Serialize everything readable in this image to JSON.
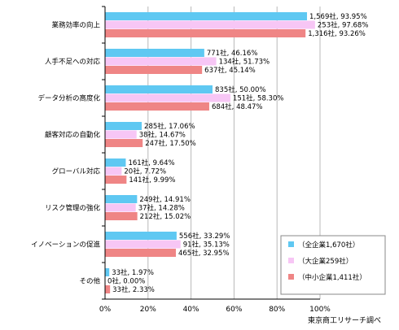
{
  "chart_data": {
    "type": "bar",
    "orientation": "horizontal",
    "categories": [
      "業務効率の向上",
      "人手不足への対応",
      "データ分析の高度化",
      "顧客対応の自動化",
      "グローバル対応",
      "リスク管理の強化",
      "イノベーションの促進",
      "その他"
    ],
    "series": [
      {
        "name": "（全企業1,670社）",
        "color": "#5fc8f2",
        "values": [
          93.95,
          46.16,
          50.0,
          17.06,
          9.64,
          14.91,
          33.29,
          1.97
        ],
        "labels": [
          "1,569社, 93.95%",
          "771社, 46.16%",
          "835社, 50.00%",
          "285社, 17.06%",
          "161社, 9.64%",
          "249社, 14.91%",
          "556社, 33.29%",
          "33社, 1.97%"
        ]
      },
      {
        "name": "（大企業259社）",
        "color": "#f7c6f5",
        "values": [
          97.68,
          51.73,
          58.3,
          14.67,
          7.72,
          14.28,
          35.13,
          0.0
        ],
        "labels": [
          "253社, 97.68%",
          "134社, 51.73%",
          "151社, 58.30%",
          "38社, 14.67%",
          "20社, 7.72%",
          "37社, 14.28%",
          "91社, 35.13%",
          "0社, 0.00%"
        ]
      },
      {
        "name": "（中小企業1,411社）",
        "color": "#ef8585",
        "values": [
          93.26,
          45.14,
          48.47,
          17.5,
          9.99,
          15.02,
          32.95,
          2.33
        ],
        "labels": [
          "1,316社, 93.26%",
          "637社, 45.14%",
          "684社, 48.47%",
          "247社, 17.50%",
          "141社, 9.99%",
          "212社, 15.02%",
          "465社, 32.95%",
          "33社, 2.33%"
        ]
      }
    ],
    "xlim": [
      0,
      100
    ],
    "xticks": [
      "0%",
      "20%",
      "40%",
      "60%",
      "80%",
      "100%"
    ],
    "grid": true,
    "legend": "bottom-right",
    "title": "",
    "xlabel": "",
    "ylabel": ""
  },
  "source": "東京商工リサーチ調べ"
}
